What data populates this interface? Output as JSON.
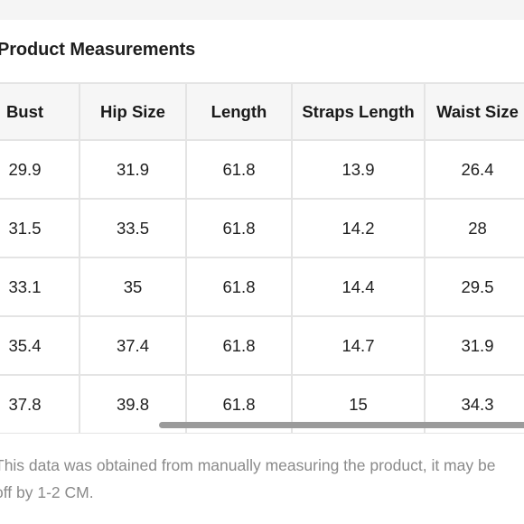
{
  "section": {
    "title": "Product Measurements"
  },
  "table": {
    "headers": [
      "Bust",
      "Hip Size",
      "Length",
      "Straps Length",
      "Waist Size"
    ],
    "rows": [
      [
        "29.9",
        "31.9",
        "61.8",
        "13.9",
        "26.4"
      ],
      [
        "31.5",
        "33.5",
        "61.8",
        "14.2",
        "28"
      ],
      [
        "33.1",
        "35",
        "61.8",
        "14.4",
        "29.5"
      ],
      [
        "35.4",
        "37.4",
        "61.8",
        "14.7",
        "31.9"
      ],
      [
        "37.8",
        "39.8",
        "61.8",
        "15",
        "34.3"
      ]
    ]
  },
  "footnote": {
    "text": "This data was obtained from manually measuring the product, it may be off by 1-2 CM."
  },
  "colors": {
    "header_background": "#f6f6f6",
    "cell_border": "#e4e4e4",
    "footnote_text": "#8a8a8a",
    "scrollbar": "#9b9b9b"
  }
}
